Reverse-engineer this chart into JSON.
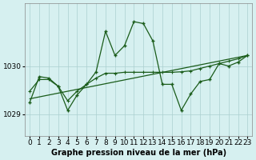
{
  "title": "Graphe pression niveau de la mer (hPa)",
  "background_color": "#d6f0f0",
  "grid_color": "#aad0d0",
  "line_color": "#1a5c1a",
  "xlim": [
    -0.5,
    23.5
  ],
  "ylim": [
    1028.55,
    1031.3
  ],
  "yticks": [
    1029,
    1030
  ],
  "xticks": [
    0,
    1,
    2,
    3,
    4,
    5,
    6,
    7,
    8,
    9,
    10,
    11,
    12,
    13,
    14,
    15,
    16,
    17,
    18,
    19,
    20,
    21,
    22,
    23
  ],
  "series1_x": [
    0,
    1,
    2,
    3,
    4,
    5,
    6,
    7,
    8,
    9,
    10,
    11,
    12,
    13,
    14,
    15,
    16,
    17,
    18,
    19,
    20,
    21,
    22,
    23
  ],
  "series1_y": [
    1029.25,
    1029.78,
    1029.75,
    1029.58,
    1029.08,
    1029.4,
    1029.62,
    1029.88,
    1030.72,
    1030.22,
    1030.42,
    1030.92,
    1030.88,
    1030.52,
    1029.62,
    1029.62,
    1029.08,
    1029.42,
    1029.68,
    1029.72,
    1030.05,
    1030.0,
    1030.08,
    1030.22
  ],
  "series2_x": [
    0,
    1,
    2,
    3,
    4,
    5,
    6,
    7,
    8,
    9,
    10,
    11,
    12,
    13,
    14,
    15,
    16,
    17,
    18,
    19,
    20,
    21,
    22,
    23
  ],
  "series2_y": [
    1029.48,
    1029.72,
    1029.72,
    1029.58,
    1029.28,
    1029.48,
    1029.62,
    1029.75,
    1029.85,
    1029.85,
    1029.87,
    1029.87,
    1029.87,
    1029.87,
    1029.87,
    1029.87,
    1029.88,
    1029.9,
    1029.95,
    1030.0,
    1030.05,
    1030.1,
    1030.15,
    1030.22
  ],
  "series3_x": [
    0,
    23
  ],
  "series3_y": [
    1029.32,
    1030.22
  ],
  "tick_fontsize": 6.5,
  "title_fontsize": 7.0
}
